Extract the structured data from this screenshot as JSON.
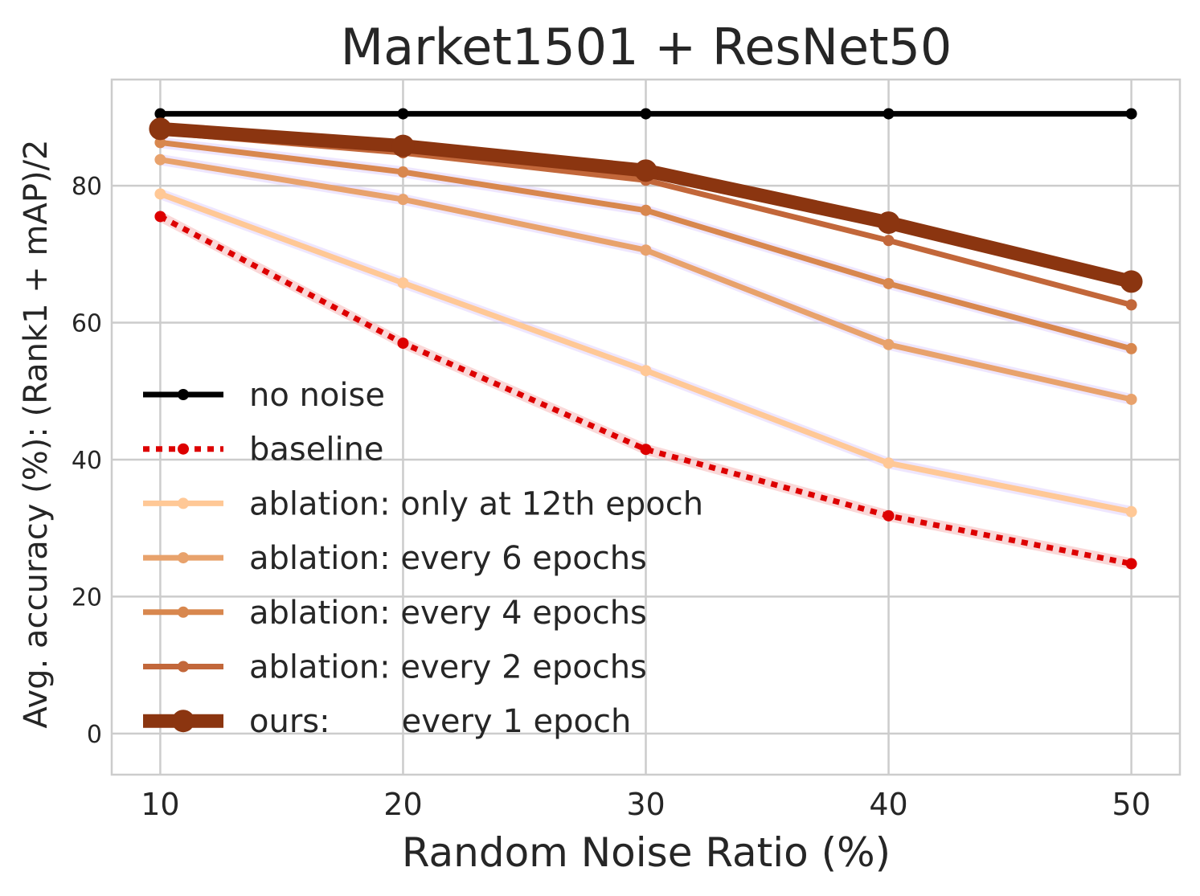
{
  "chart_data": {
    "type": "line",
    "title": "Market1501 + ResNet50",
    "xlabel": "Random Noise Ratio (%)",
    "ylabel": "Avg. accuracy (%): (Rank1 + mAP)/2",
    "xlim": [
      8,
      52
    ],
    "ylim": [
      -6,
      95.5
    ],
    "x": [
      10,
      20,
      30,
      40,
      50
    ],
    "xticks": [
      "10",
      "20",
      "30",
      "40",
      "50"
    ],
    "yticks": [
      "0",
      "20",
      "40",
      "60",
      "80"
    ],
    "ytick_values": [
      0,
      20,
      40,
      60,
      80
    ],
    "grid": true,
    "legend_position": "lower-left",
    "series": [
      {
        "name": "no noise",
        "values": [
          90.5,
          90.5,
          90.5,
          90.5,
          90.5
        ],
        "color": "#000000",
        "style": "solid",
        "weight": "medium",
        "band": false
      },
      {
        "name": "baseline",
        "values": [
          75.5,
          57.0,
          41.5,
          31.8,
          24.8
        ],
        "color": "#dd0000",
        "style": "dotted",
        "weight": "medium",
        "band": true
      },
      {
        "name": "ablation: only at 12th epoch",
        "values": [
          78.8,
          65.8,
          53.0,
          39.5,
          32.4
        ],
        "color": "#ffc896",
        "style": "solid",
        "weight": "medium",
        "band": true
      },
      {
        "name": "ablation: every 6 epochs",
        "values": [
          83.8,
          78.0,
          70.6,
          56.8,
          48.8
        ],
        "color": "#e8a26c",
        "style": "solid",
        "weight": "medium",
        "band": true
      },
      {
        "name": "ablation: every 4 epochs",
        "values": [
          86.3,
          82.0,
          76.4,
          65.7,
          56.2
        ],
        "color": "#d8874e",
        "style": "solid",
        "weight": "medium",
        "band": true
      },
      {
        "name": "ablation: every 2 epochs",
        "values": [
          87.8,
          84.8,
          80.8,
          72.0,
          62.6
        ],
        "color": "#c2673a",
        "style": "solid",
        "weight": "medium",
        "band": false
      },
      {
        "name": "ours:       every 1 epoch",
        "values": [
          88.3,
          85.8,
          82.2,
          74.6,
          66.0
        ],
        "color": "#8b3510",
        "style": "solid",
        "weight": "thick",
        "band": false
      }
    ]
  }
}
